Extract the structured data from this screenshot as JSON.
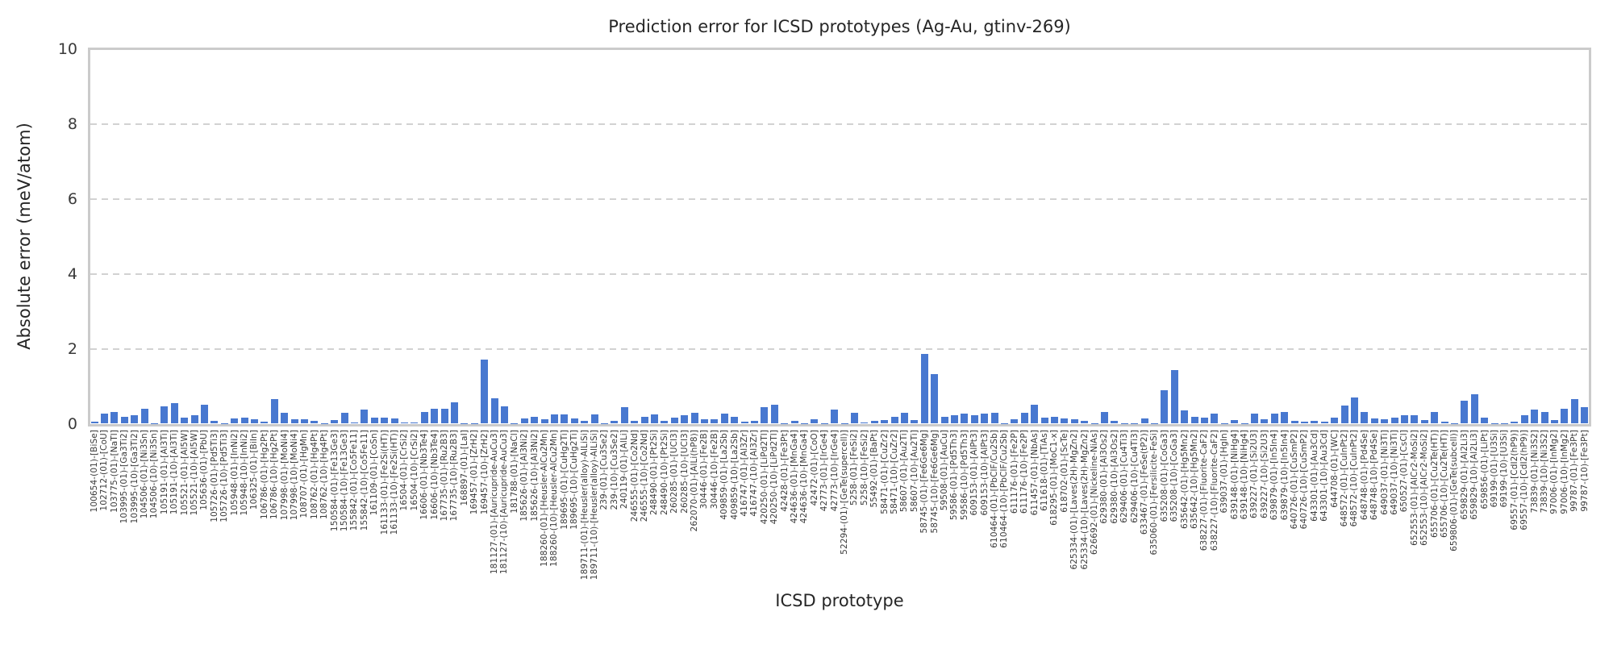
{
  "chart_data": {
    "type": "bar",
    "title": "Prediction error for ICSD prototypes (Ag-Au, gtinv-269)",
    "xlabel": "ICSD prototype",
    "ylabel": "Absolute error (meV/atom)",
    "ylim": [
      0,
      10
    ],
    "yticks": [
      0,
      2,
      4,
      6,
      8,
      10
    ],
    "grid": "horizontal-dashed",
    "legend_position": "none",
    "bar_color": "#4878d0",
    "gridline_color": "#d2d2d2",
    "frame_color": "#cbcbcb",
    "categories": [
      "100654-(01)-[BiSe]",
      "102712-(01)-[CoU]",
      "103775-(01)-[NaTl]",
      "103995-(01)-[Ga3Ti2]",
      "103995-(10)-[Ga3Ti2]",
      "104506-(01)-[Ni3Sn]",
      "104506-(10)-[Ni3Sn]",
      "105191-(01)-[Al3Ti]",
      "105191-(10)-[Al3Ti]",
      "105521-(01)-[Al5W]",
      "105521-(10)-[Al5W]",
      "105636-(01)-[PbU]",
      "105726-(01)-[Pd5Ti3]",
      "105726-(10)-[Pd5Ti3]",
      "105948-(01)-[InNi2]",
      "105948-(10)-[InNi2]",
      "106325-(01)-[BiIn]",
      "106786-(01)-[Hg2Pt]",
      "106786-(10)-[Hg2Pt]",
      "107998-(01)-[MoNi4]",
      "107998-(10)-[MoNi4]",
      "108707-(01)-[HgMn]",
      "108762-(01)-[Hg4Pt]",
      "108762-(10)-[Hg4Pt]",
      "150584-(01)-[Fe13Ge3]",
      "150584-(10)-[Fe13Ge3]",
      "155842-(01)-[Co5Fe11]",
      "155842-(10)-[Co5Fe11]",
      "161109-(01)-[CoSn]",
      "161133-(01)-[Fe2Si(HT)]",
      "161133-(10)-[Fe2Si(HT)]",
      "16504-(01)-[CrSi2]",
      "16504-(10)-[CrSi2]",
      "16606-(01)-[Nb3Te4]",
      "16606-(10)-[Nb3Te4]",
      "167735-(01)-[Ru2B3]",
      "167735-(10)-[Ru2B3]",
      "168897-(01)-[LaI]",
      "169457-(01)-[ZrH2]",
      "169457-(10)-[ZrH2]",
      "181127-(01)-[Auricupride-AuCu3]",
      "181127-(10)-[Auricupride-AuCu3]",
      "181788-(01)-[NaCl]",
      "185626-(01)-[Al3Ni2]",
      "185626-(10)-[Al3Ni2]",
      "188260-(01)-[Heusler-AlCu2Mn]",
      "188260-(10)-[Heusler-AlCu2Mn]",
      "189695-(01)-[CuHg2Ti]",
      "189695-(10)-[CuHg2Ti]",
      "189711-(01)-[Heusler(alloy)-AlLiSi]",
      "189711-(10)-[Heusler(alloy)-AlLiSi]",
      "239-(01)-[Cu3Se2]",
      "239-(10)-[Cu3Se2]",
      "240119-(01)-[AlLi]",
      "246555-(01)-[Co2Nd]",
      "246555-(10)-[Co2Nd]",
      "248490-(01)-[Pt2Si]",
      "248490-(10)-[Pt2Si]",
      "260285-(01)-[UCl3]",
      "260285-(10)-[UCl3]",
      "262070-(01)-[AlLi(hP8)]",
      "30446-(01)-[Fe2B]",
      "30446-(10)-[Fe2B]",
      "409859-(01)-[La2Sb]",
      "409859-(10)-[La2Sb]",
      "416747-(01)-[Al3Zr]",
      "416747-(10)-[Al3Zr]",
      "420250-(01)-[LiPd2Tl]",
      "420250-(10)-[LiPd2Tl]",
      "42428-(01)-[Fe3Pt]",
      "424636-(01)-[MnGa4]",
      "424636-(10)-[MnGa4]",
      "42472-(01)-[CoO]",
      "42773-(01)-[IrGe4]",
      "42773-(10)-[IrGe4]",
      "52294-(01)-[GeTe(supercell)]",
      "5258-(01)-[FeSi2]",
      "5258-(10)-[FeSi2]",
      "55492-(01)-[BaPt]",
      "58471-(01)-[CuZr2]",
      "58471-(10)-[CuZr2]",
      "58607-(01)-[Au2Ti]",
      "58607-(10)-[Au2Ti]",
      "58745-(01)-[Fe6Ge6Mg]",
      "58745-(10)-[Fe6Ge6Mg]",
      "59508-(01)-[AuCu]",
      "59586-(01)-[Pd5Th3]",
      "59586-(10)-[Pd5Th3]",
      "609153-(01)-[AlPt3]",
      "609153-(10)-[AlPt3]",
      "610464-(01)-[PbClF/Cu2Sb]",
      "610464-(10)-[PbClF/Cu2Sb]",
      "611176-(01)-[Fe2P]",
      "611176-(10)-[Fe2P]",
      "611457-(01)-[NbAs]",
      "611618-(01)-[TiAs]",
      "618295-(01)-[MoC1-x]",
      "618702-(01)-[ScTe]",
      "625334-(01)-[Laves(2H)-MgZn2]",
      "625334-(10)-[Laves(2H)-MgZn2]",
      "626692-(01)-[Nickeline-NiAs]",
      "629380-(01)-[Al3Os2]",
      "629380-(10)-[Al3Os2]",
      "629406-(01)-[Cu4Ti3]",
      "629406-(10)-[Cu4Ti3]",
      "633467-(01)-[FeSe(tP2)]",
      "635060-(01)-[Fersilicite-FeSi]",
      "635208-(01)-[CoGa3]",
      "635208-(10)-[CoGa3]",
      "635642-(01)-[Hg5Mn2]",
      "635642-(10)-[Hg5Mn2]",
      "638227-(01)-[Fluorite-CaF2]",
      "638227-(10)-[Fluorite-CaF2]",
      "639037-(01)-[HgIn]",
      "639148-(01)-[NiHg4]",
      "639148-(10)-[NiHg4]",
      "639227-(01)-[Si2U3]",
      "639227-(10)-[Si2U3]",
      "639879-(01)-[In5In4]",
      "639879-(10)-[In5In4]",
      "640726-(01)-[CuSmP2]",
      "640726-(10)-[CuSmP2]",
      "643301-(01)-[Au3Cd]",
      "643301-(10)-[Au3Cd]",
      "644708-(01)-[WC]",
      "648572-(01)-[CuInPt2]",
      "648572-(10)-[CuInPt2]",
      "648748-(01)-[Pd4Se]",
      "648748-(10)-[Pd4Se]",
      "649037-(01)-[Ni3Ti]",
      "649037-(10)-[Ni3Ti]",
      "650527-(01)-[CsCl]",
      "652553-(01)-[AlCr2-MoSi2]",
      "652553-(10)-[AlCr2-MoSi2]",
      "655706-(01)-[Cu2Te(HT)]",
      "655706-(10)-[Cu2Te(HT)]",
      "659806-(01)-[GeTe(subcell)]",
      "659829-(01)-[Al2Li3]",
      "659829-(10)-[Al2Li3]",
      "659856-(01)-[LiPt]",
      "69199-(01)-[U3Si]",
      "69199-(10)-[U3Si]",
      "69557-(01)-[CdI2(hP9)]",
      "69557-(10)-[CdI2(hP9)]",
      "73839-(01)-[Ni3S2]",
      "73839-(10)-[Ni3S2]",
      "97006-(01)-[InMg2]",
      "97006-(10)-[InMg2]",
      "99787-(01)-[Fe3Pt]",
      "99787-(10)-[Fe3Pt]"
    ],
    "values": [
      0.05,
      0.25,
      0.3,
      0.18,
      0.21,
      0.39,
      0.01,
      0.46,
      0.53,
      0.14,
      0.21,
      0.5,
      0.07,
      0.01,
      0.13,
      0.16,
      0.11,
      0.04,
      0.64,
      0.28,
      0.11,
      0.11,
      0.06,
      0.01,
      0.09,
      0.29,
      0.03,
      0.36,
      0.14,
      0.16,
      0.13,
      0.02,
      0.02,
      0.3,
      0.39,
      0.39,
      0.55,
      0.01,
      0.01,
      1.7,
      0.66,
      0.46,
      0.01,
      0.13,
      0.18,
      0.11,
      0.23,
      0.23,
      0.13,
      0.06,
      0.23,
      0.01,
      0.07,
      0.44,
      0.06,
      0.18,
      0.23,
      0.06,
      0.16,
      0.21,
      0.29,
      0.1,
      0.11,
      0.25,
      0.18,
      0.05,
      0.06,
      0.43,
      0.5,
      0.01,
      0.07,
      0.01,
      0.1,
      0.01,
      0.36,
      0.01,
      0.27,
      0.02,
      0.06,
      0.09,
      0.18,
      0.27,
      0.09,
      1.85,
      1.31,
      0.18,
      0.21,
      0.25,
      0.21,
      0.25,
      0.27,
      0.01,
      0.11,
      0.27,
      0.5,
      0.14,
      0.18,
      0.13,
      0.1,
      0.07,
      0.01,
      0.3,
      0.06,
      0.01,
      0.01,
      0.13,
      0.01,
      0.88,
      1.42,
      0.34,
      0.18,
      0.14,
      0.25,
      0.01,
      0.08,
      0.01,
      0.26,
      0.1,
      0.26,
      0.3,
      0.07,
      0.04,
      0.06,
      0.05,
      0.16,
      0.47,
      0.68,
      0.3,
      0.13,
      0.11,
      0.16,
      0.22,
      0.22,
      0.09,
      0.3,
      0.04,
      0.01,
      0.61,
      0.78,
      0.16,
      0.01,
      0.01,
      0.04,
      0.21,
      0.37,
      0.3,
      0.09,
      0.39,
      0.65,
      0.43
    ]
  }
}
